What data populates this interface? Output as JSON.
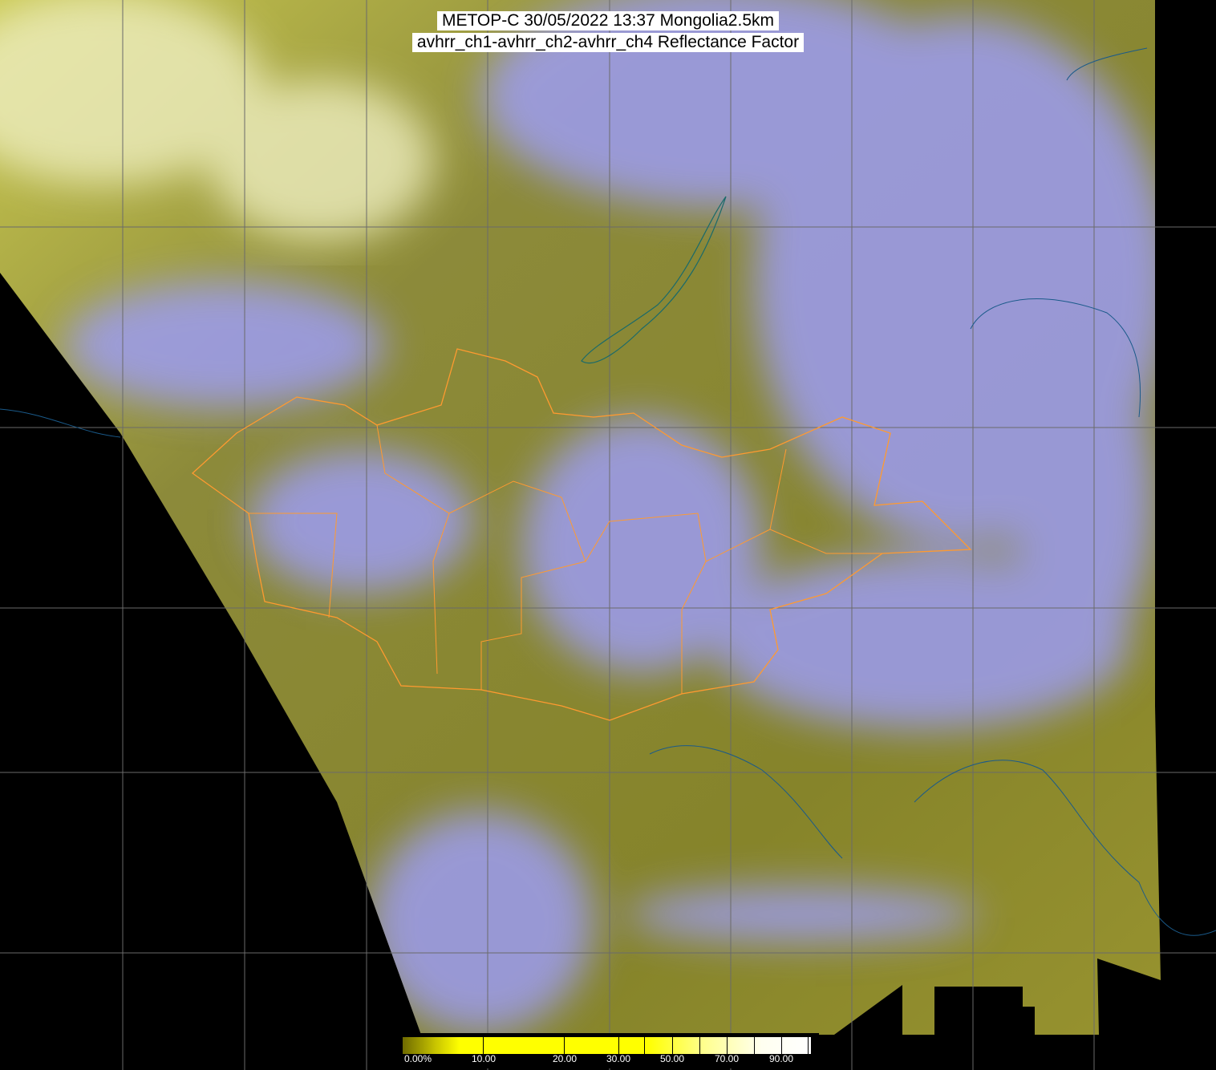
{
  "title": {
    "line1": "METOP-C 30/05/2022 13:37 Mongolia2.5km",
    "line2": "avhrr_ch1-avhrr_ch2-avhrr_ch4 Reflectance Factor"
  },
  "colorbar": {
    "labels": [
      "0.00%",
      "10.00",
      "20.00",
      "30.00",
      "50.00",
      "70.00",
      "90.00"
    ],
    "range": [
      0,
      100
    ],
    "colors": [
      "#6e6a00",
      "#ffff00",
      "#ffffff"
    ]
  },
  "colors": {
    "no_data": "#000000",
    "land": "#8a8a1e",
    "cloud": "#9a9aff",
    "graticule": "#6a6a6a",
    "admin_borders": "#ff9a30",
    "coastlines": "#1a5a8a"
  }
}
